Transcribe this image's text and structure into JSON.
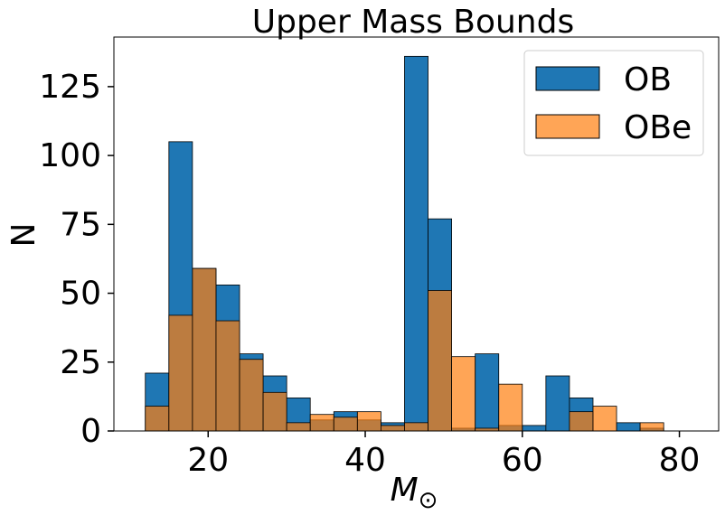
{
  "chart_data": {
    "type": "histogram",
    "title": "Upper Mass Bounds",
    "xlabel": "M",
    "xlabel_subscript": "⊙",
    "ylabel": "N",
    "xlim": [
      8,
      85
    ],
    "ylim": [
      0,
      143
    ],
    "x_ticks": [
      20,
      40,
      60,
      80
    ],
    "y_ticks": [
      0,
      25,
      50,
      75,
      100,
      125
    ],
    "bin_edges": [
      12,
      15,
      18,
      21,
      24,
      27,
      30,
      33,
      36,
      39,
      42,
      45,
      48,
      51,
      54,
      57,
      60,
      63,
      66,
      69,
      72,
      75,
      78,
      81
    ],
    "legend_position": "top-right",
    "series": [
      {
        "name": "OB",
        "color": "#1f77b4",
        "values": [
          21,
          105,
          59,
          53,
          28,
          20,
          12,
          4,
          7,
          4,
          3,
          136,
          77,
          1,
          28,
          2,
          2,
          20,
          12,
          0,
          3,
          1,
          0
        ]
      },
      {
        "name": "OBe",
        "color": "#ff7f0e",
        "values": [
          9,
          42,
          59,
          40,
          26,
          14,
          3,
          6,
          5,
          7,
          2,
          3,
          51,
          27,
          1,
          17,
          0,
          0,
          7,
          9,
          0,
          3,
          0
        ]
      }
    ]
  }
}
